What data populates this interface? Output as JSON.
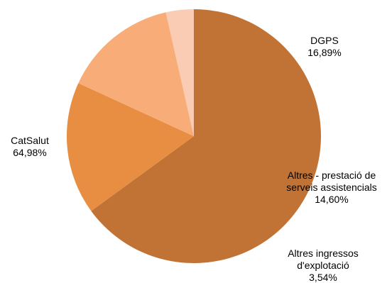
{
  "chart_data": {
    "type": "pie",
    "start_angle_deg": 90,
    "direction": "clockwise",
    "slices": [
      {
        "category": "CatSalut",
        "value": 64.98,
        "value_label": "64,98%",
        "color": "#C17335",
        "label_lines": [
          "CatSalut",
          "64,98%"
        ]
      },
      {
        "category": "DGPS",
        "value": 16.89,
        "value_label": "16,89%",
        "color": "#E88E42",
        "label_lines": [
          "DGPS",
          "16,89%"
        ]
      },
      {
        "category": "Altres - prestació de serveis assistencials",
        "value": 14.6,
        "value_label": "14,60%",
        "color": "#F8AC78",
        "label_lines": [
          "Altres - prestació de",
          "serveis assistencials",
          "14,60%"
        ]
      },
      {
        "category": "Altres ingressos d'explotació",
        "value": 3.54,
        "value_label": "3,54%",
        "color": "#F9CCB3",
        "label_lines": [
          "Altres ingressos",
          "d'explotació",
          "3,54%"
        ]
      }
    ]
  }
}
